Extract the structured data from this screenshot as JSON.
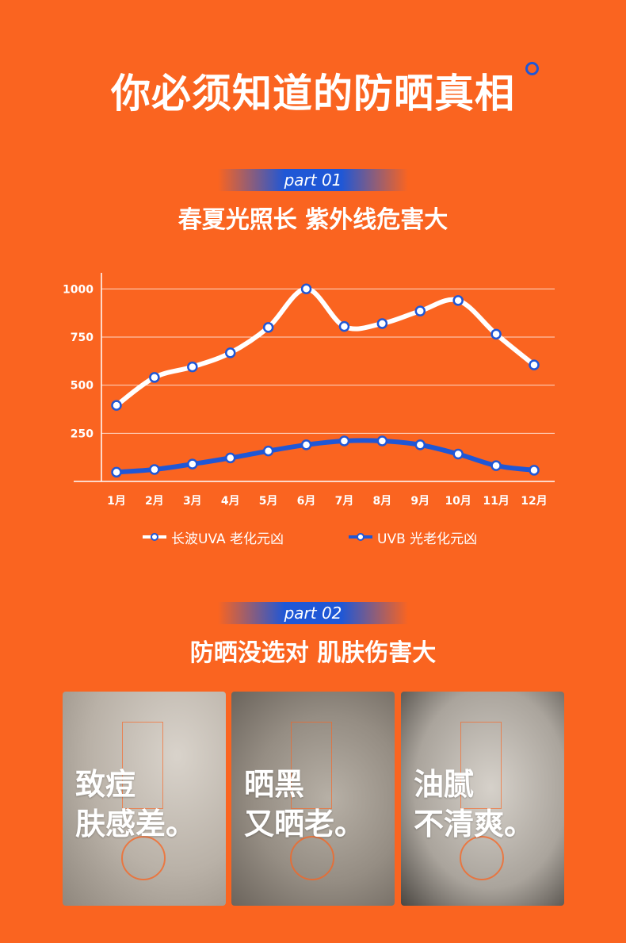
{
  "header": {
    "title": "你必须知道的防晒真相"
  },
  "part1": {
    "badge": "part 01",
    "heading": "春夏光照长 紫外线危害大"
  },
  "chart_data": {
    "type": "line",
    "categories": [
      "1月",
      "2月",
      "3月",
      "4月",
      "5月",
      "6月",
      "7月",
      "8月",
      "9月",
      "10月",
      "11月",
      "12月"
    ],
    "series": [
      {
        "name": "长波UVA 老化元凶",
        "color": "#FFFFFF",
        "values": [
          395,
          540,
          595,
          668,
          800,
          1000,
          805,
          820,
          885,
          940,
          765,
          605
        ]
      },
      {
        "name": "UVB 光老化元凶",
        "color": "#1F57D6",
        "values": [
          48,
          62,
          90,
          122,
          158,
          190,
          210,
          210,
          190,
          142,
          82,
          58
        ]
      }
    ],
    "yticks": [
      250,
      500,
      750,
      1000
    ],
    "ylim": [
      0,
      1100
    ],
    "grid": true,
    "legend_position": "bottom"
  },
  "part2": {
    "badge": "part 02",
    "heading": "防晒没选对 肌肤伤害大",
    "cards": [
      {
        "line1": "致痘",
        "line2": "肤感差。"
      },
      {
        "line1": "晒黑",
        "line2": "又晒老。"
      },
      {
        "line1": "油腻",
        "line2": "不清爽。"
      }
    ]
  }
}
